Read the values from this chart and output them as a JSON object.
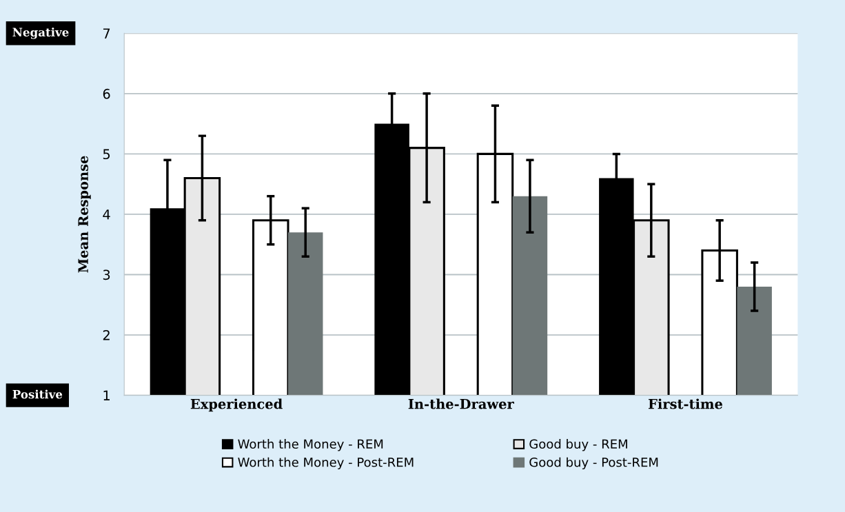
{
  "chart_data": {
    "type": "bar",
    "ylabel": "Mean Response",
    "categories": [
      "Experienced",
      "In-the-Drawer",
      "First-time"
    ],
    "series": [
      {
        "name": "Worth the Money - REM",
        "color": "#000000",
        "values": [
          4.1,
          5.5,
          4.6
        ],
        "errors": [
          0.8,
          0.5,
          0.4
        ]
      },
      {
        "name": "Good buy - REM",
        "color": "#e8e8e8",
        "values": [
          4.6,
          5.1,
          3.9
        ],
        "errors": [
          0.7,
          0.9,
          0.6
        ]
      },
      {
        "name": "Worth the Money - Post-REM",
        "color": "#ffffff",
        "values": [
          3.9,
          5.0,
          3.4
        ],
        "errors": [
          0.4,
          0.8,
          0.5
        ]
      },
      {
        "name": "Good buy - Post-REM",
        "color": "#6e7777",
        "values": [
          3.7,
          4.3,
          2.8
        ],
        "errors": [
          0.4,
          0.6,
          0.4
        ]
      }
    ],
    "ylim": [
      1,
      7
    ],
    "yticks": [
      1,
      2,
      3,
      4,
      5,
      6,
      7
    ],
    "grid": "y",
    "legend": "bottom",
    "annotations": [
      "Negative",
      "Positive"
    ]
  }
}
